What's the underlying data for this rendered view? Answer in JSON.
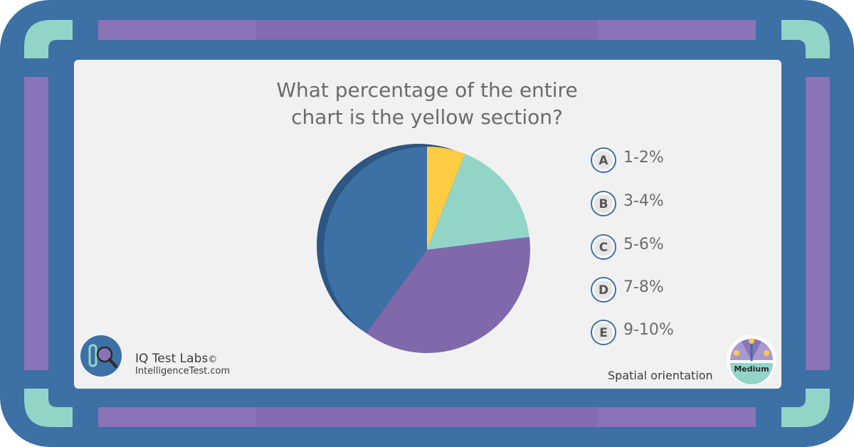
{
  "question": {
    "line1": "What percentage of the entire",
    "line2": "chart is the yellow section?"
  },
  "options": [
    {
      "letter": "A",
      "text": "1-2%"
    },
    {
      "letter": "B",
      "text": "3-4%"
    },
    {
      "letter": "C",
      "text": "5-6%"
    },
    {
      "letter": "D",
      "text": "7-8%"
    },
    {
      "letter": "E",
      "text": "9-10%"
    }
  ],
  "chart_data": {
    "type": "pie",
    "title": "",
    "slices": [
      {
        "value": 6,
        "color": "#ffcc44"
      },
      {
        "value": 17,
        "color": "#93d4c8"
      },
      {
        "value": 37,
        "color": "#8068ab"
      },
      {
        "value": 40,
        "color": "#3d70a5"
      }
    ]
  },
  "branding": {
    "name": "IQ Test Labs",
    "copyright_mark": "©",
    "url": "IntelligenceTest.com"
  },
  "category": "Spatial orientation",
  "difficulty": "Medium",
  "colors": {
    "frame_blue": "#3d70a5",
    "accent_teal": "#93d4c8",
    "accent_purple": "#8a73b8",
    "yellow": "#ffcc44"
  }
}
